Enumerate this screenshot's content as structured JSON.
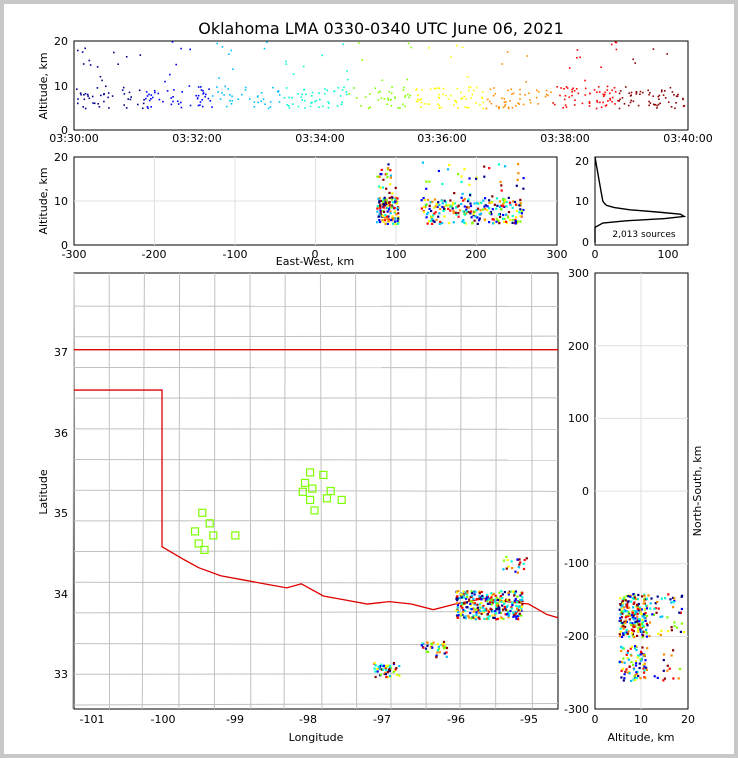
{
  "title": "Oklahoma LMA 0330-0340 UTC June 06, 2021",
  "time_panel": {
    "ylabel": "Altitude, km",
    "xticks": [
      "03:30:00",
      "03:32:00",
      "03:34:00",
      "03:36:00",
      "03:38:00",
      "03:40:00"
    ],
    "yticks": [
      "0",
      "10",
      "20"
    ]
  },
  "ew_panel": {
    "ylabel": "Altitude, km",
    "xlabel": "East-West, km",
    "xticks": [
      "-300",
      "-200",
      "-100",
      "0",
      "100",
      "200",
      "300"
    ],
    "yticks": [
      "0",
      "10",
      "20"
    ]
  },
  "hist_panel": {
    "xticks": [
      "0",
      "100"
    ],
    "yticks": [
      "0",
      "10",
      "20"
    ],
    "annotation": "2,013 sources"
  },
  "map_panel": {
    "xlabel": "Longitude",
    "ylabel": "Latitude",
    "xticks": [
      "-101",
      "-100",
      "-99",
      "-98",
      "-97",
      "-96",
      "-95"
    ],
    "yticks": [
      "33",
      "34",
      "35",
      "36",
      "37"
    ]
  },
  "ns_panel": {
    "xlabel": "Altitude, km",
    "ylabel": "North-South, km",
    "xticks": [
      "0",
      "10",
      "20"
    ],
    "yticks": [
      "-300",
      "-200",
      "-100",
      "0",
      "100",
      "200",
      "300"
    ]
  },
  "colors": {
    "state_border": "#e00000",
    "county_lines": "#c0c0c0",
    "station_marker": "#7fff00",
    "colormap": [
      "#00008b",
      "#0000ff",
      "#00bfff",
      "#00ffd0",
      "#7fff00",
      "#ffff00",
      "#ff8c00",
      "#ff0000",
      "#8b0000"
    ]
  },
  "chart_data": [
    {
      "type": "scatter",
      "panel": "altitude-vs-time",
      "x_unit": "UTC time",
      "xlim": [
        "03:30:00",
        "03:40:00"
      ],
      "ylim": [
        0,
        20
      ],
      "ylabel": "Altitude, km",
      "description_of_values": "VHF sources colored by time; main band 5-12 km, sparse sources up to 20 km",
      "typical_altitude_range_km": [
        5,
        12
      ]
    },
    {
      "type": "scatter",
      "panel": "altitude-vs-east-west",
      "xlim": [
        -300,
        300
      ],
      "ylim": [
        0,
        20
      ],
      "xlabel": "East-West, km",
      "ylabel": "Altitude, km",
      "clusters_x_km": [
        [
          70,
          105
        ],
        [
          130,
          260
        ]
      ]
    },
    {
      "type": "line",
      "panel": "altitude-histogram",
      "xlim": [
        0,
        120
      ],
      "ylim": [
        0,
        20
      ],
      "annotation": "2,013 sources",
      "altitude_km": [
        0.5,
        2,
        4,
        5,
        5.5,
        6,
        6.5,
        7,
        7.5,
        8,
        8.5,
        9,
        9.5,
        10,
        11,
        12,
        13,
        14,
        16,
        18,
        20
      ],
      "count": [
        0,
        0,
        0,
        10,
        40,
        90,
        115,
        110,
        80,
        45,
        25,
        15,
        12,
        10,
        9,
        8,
        7,
        6,
        4,
        2,
        0
      ]
    },
    {
      "type": "scatter",
      "panel": "plan-view-map",
      "xlabel": "Longitude",
      "ylabel": "Latitude",
      "xlim": [
        -101.2,
        -94.6
      ],
      "ylim": [
        32.55,
        37.95
      ],
      "clusters": [
        {
          "lon": -95.55,
          "lat": 33.85
        },
        {
          "lon": -96.3,
          "lat": 33.3
        },
        {
          "lon": -96.95,
          "lat": 33.05
        },
        {
          "lon": -95.2,
          "lat": 34.35
        }
      ],
      "stations": [
        {
          "lon": -99.45,
          "lat": 34.98
        },
        {
          "lon": -99.35,
          "lat": 34.85
        },
        {
          "lon": -99.55,
          "lat": 34.75
        },
        {
          "lon": -99.3,
          "lat": 34.7
        },
        {
          "lon": -99.5,
          "lat": 34.6
        },
        {
          "lon": -99.42,
          "lat": 34.52
        },
        {
          "lon": -99.0,
          "lat": 34.7
        },
        {
          "lon": -97.98,
          "lat": 35.48
        },
        {
          "lon": -98.05,
          "lat": 35.35
        },
        {
          "lon": -97.8,
          "lat": 35.45
        },
        {
          "lon": -97.95,
          "lat": 35.28
        },
        {
          "lon": -98.08,
          "lat": 35.24
        },
        {
          "lon": -97.7,
          "lat": 35.25
        },
        {
          "lon": -97.55,
          "lat": 35.14
        },
        {
          "lon": -97.75,
          "lat": 35.16
        },
        {
          "lon": -97.98,
          "lat": 35.14
        },
        {
          "lon": -97.92,
          "lat": 35.01
        }
      ]
    },
    {
      "type": "scatter",
      "panel": "north-south-vs-altitude",
      "xlim": [
        0,
        20
      ],
      "ylim": [
        -300,
        300
      ],
      "xlabel": "Altitude, km",
      "ylabel": "North-South, km",
      "clusters_y_km": [
        [
          -200,
          -140
        ],
        [
          -260,
          -210
        ]
      ]
    }
  ]
}
